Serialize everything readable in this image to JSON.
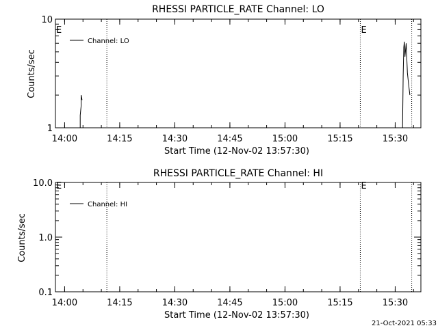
{
  "footer": {
    "timestamp": "21-Oct-2021 05:33"
  },
  "chart_data": [
    {
      "type": "line",
      "title": "RHESSI PARTICLE_RATE Channel: LO",
      "xlabel": "Start Time (12-Nov-02 13:57:30)",
      "ylabel": "Counts/sec",
      "yscale": "log",
      "xlim": [
        "13:57:30",
        "15:37:00"
      ],
      "ylim": [
        1,
        10
      ],
      "x_ticks": [
        "14:00",
        "14:15",
        "14:30",
        "14:45",
        "15:00",
        "15:15",
        "15:30"
      ],
      "y_ticks": [
        "1",
        "10"
      ],
      "legend": {
        "position": "top-left",
        "entries": [
          "Channel: LO"
        ]
      },
      "event_lines": [
        "14:11:30",
        "15:20:30",
        "15:34:30"
      ],
      "event_labels": [
        {
          "text": "E",
          "at": "13:57:30"
        },
        {
          "text": "E",
          "at": "15:20:30"
        }
      ],
      "series": [
        {
          "name": "Channel: LO",
          "segments": [
            [
              {
                "x": "14:04:15",
                "y": 1
              },
              {
                "x": "14:04:15",
                "y": 1.3
              },
              {
                "x": "14:04:30",
                "y": 1.6
              },
              {
                "x": "14:04:30",
                "y": 2.0
              },
              {
                "x": "14:04:45",
                "y": 1.8
              }
            ],
            [
              {
                "x": "15:32:00",
                "y": 1
              },
              {
                "x": "15:32:10",
                "y": 3.0
              },
              {
                "x": "15:32:20",
                "y": 5.5
              },
              {
                "x": "15:32:30",
                "y": 6.2
              },
              {
                "x": "15:32:40",
                "y": 4.5
              },
              {
                "x": "15:33:00",
                "y": 6.0
              },
              {
                "x": "15:33:20",
                "y": 3.2
              },
              {
                "x": "15:33:40",
                "y": 2.5
              },
              {
                "x": "15:34:00",
                "y": 2.0
              }
            ]
          ]
        }
      ]
    },
    {
      "type": "line",
      "title": "RHESSI PARTICLE_RATE Channel: HI",
      "xlabel": "Start Time (12-Nov-02 13:57:30)",
      "ylabel": "Counts/sec",
      "yscale": "log",
      "xlim": [
        "13:57:30",
        "15:37:00"
      ],
      "ylim": [
        0.1,
        10
      ],
      "x_ticks": [
        "14:00",
        "14:15",
        "14:30",
        "14:45",
        "15:00",
        "15:15",
        "15:30"
      ],
      "y_ticks": [
        "0.1",
        "1.0",
        "10.0"
      ],
      "legend": {
        "position": "top-left",
        "entries": [
          "Channel: HI"
        ]
      },
      "event_lines": [
        "14:11:30",
        "15:20:30",
        "15:34:30"
      ],
      "event_labels": [
        {
          "text": "E",
          "at": "13:57:30"
        },
        {
          "text": "E",
          "at": "15:20:30"
        }
      ],
      "series": [
        {
          "name": "Channel: HI",
          "segments": []
        }
      ]
    }
  ]
}
